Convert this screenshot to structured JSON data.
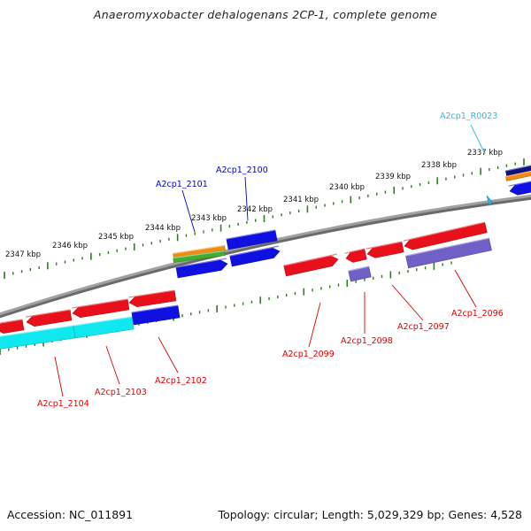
{
  "title": "Anaeromyxobacter dehalogenans 2CP-1, complete genome",
  "accession_line": "Accession: NC_011891",
  "summary_line": "Topology: circular; Length: 5,029,329 bp; Genes: 4,528",
  "colors": {
    "backbone": "#8a8a8a",
    "tick": "#2e7d1e",
    "red_gene": "#e8101a",
    "blue_gene": "#1010e0",
    "cyan_gene": "#10e8f0",
    "purple_gene": "#7060c8",
    "orange_gene": "#f08a10",
    "green_gene": "#40b030",
    "navy_gene": "#101080",
    "label_red": "#dd0000",
    "label_blue": "#0000cc",
    "label_cyan": "#30b8e8"
  },
  "kbp_ticks": [
    "2347 kbp",
    "2346 kbp",
    "2345 kbp",
    "2344 kbp",
    "2343 kbp",
    "2342 kbp",
    "2341 kbp",
    "2340 kbp",
    "2339 kbp",
    "2338 kbp",
    "2337 kbp"
  ],
  "gene_labels": [
    {
      "text": "A2cp1_R0023",
      "color": "cyan"
    },
    {
      "text": "A2cp1_2100",
      "color": "blue"
    },
    {
      "text": "A2cp1_2101",
      "color": "blue"
    },
    {
      "text": "A2cp1_2096",
      "color": "red"
    },
    {
      "text": "A2cp1_2097",
      "color": "red"
    },
    {
      "text": "A2cp1_2098",
      "color": "red"
    },
    {
      "text": "A2cp1_2099",
      "color": "red"
    },
    {
      "text": "A2cp1_2102",
      "color": "red"
    },
    {
      "text": "A2cp1_2103",
      "color": "red"
    },
    {
      "text": "A2cp1_2104",
      "color": "red"
    }
  ]
}
